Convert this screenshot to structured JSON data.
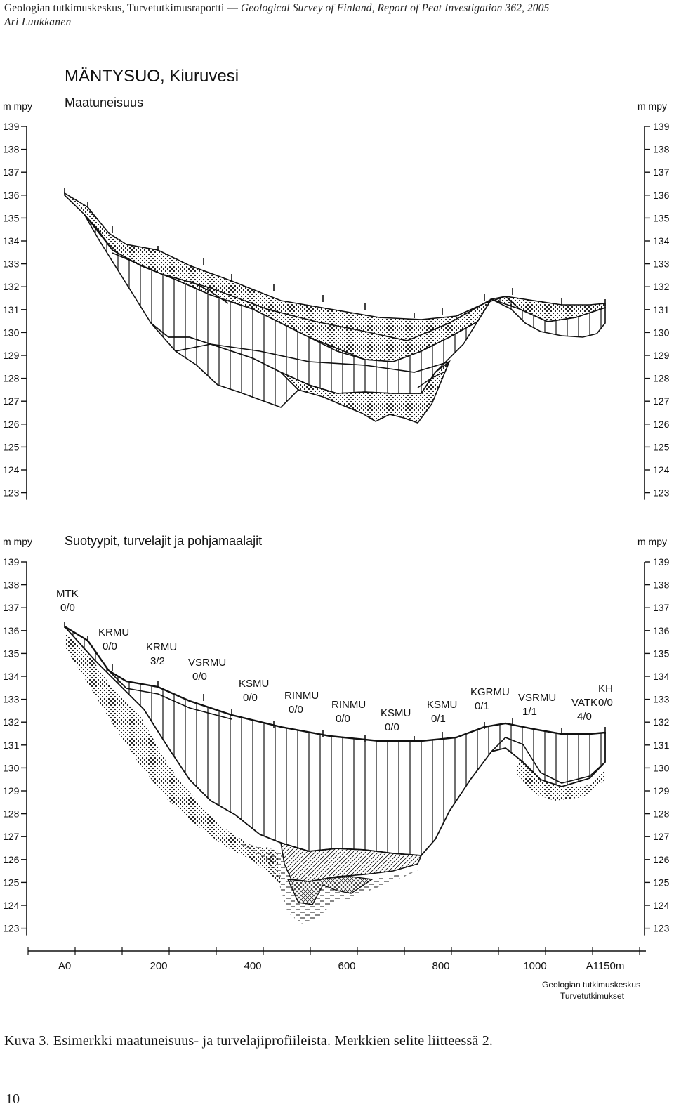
{
  "header": {
    "running_title_regular": "Geologian tutkimuskeskus, Turvetutkimusraportti —",
    "running_title_italic": "Geological Survey of Finland, Report of Peat Investigation 362, 2005",
    "author": "Ari Luukkanen"
  },
  "figure": {
    "site_title": "MÄNTYSUO, Kiuruvesi",
    "top_panel": {
      "title": "Maatuneisuus",
      "axis_unit": "m mpy",
      "levels": [
        "139",
        "138",
        "137",
        "136",
        "135",
        "134",
        "133",
        "132",
        "131",
        "130",
        "129",
        "128",
        "127",
        "126",
        "125",
        "124",
        "123"
      ]
    },
    "bottom_panel": {
      "title": "Suotyypit, turvelajit ja pohjamaalajit",
      "axis_unit": "m mpy",
      "levels": [
        "139",
        "138",
        "137",
        "136",
        "135",
        "134",
        "133",
        "132",
        "131",
        "130",
        "129",
        "128",
        "127",
        "126",
        "125",
        "124",
        "123"
      ],
      "site_labels": [
        {
          "type": "MTK",
          "code": "0/0"
        },
        {
          "type": "KRMU",
          "code": "0/0"
        },
        {
          "type": "KRMU",
          "code": "3/2"
        },
        {
          "type": "VSRMU",
          "code": "0/0"
        },
        {
          "type": "KSMU",
          "code": "0/0"
        },
        {
          "type": "RINMU",
          "code": "0/0"
        },
        {
          "type": "RINMU",
          "code": "0/0"
        },
        {
          "type": "KSMU",
          "code": "0/0"
        },
        {
          "type": "KSMU",
          "code": "0/1"
        },
        {
          "type": "KGRMU",
          "code": "0/1"
        },
        {
          "type": "VSRMU",
          "code": "1/1"
        },
        {
          "type": "VATK",
          "code": "4/0"
        },
        {
          "type": "KH",
          "code": "0/0"
        }
      ]
    },
    "distance_axis": [
      "A0",
      "200",
      "400",
      "600",
      "800",
      "1000",
      "A1150m"
    ],
    "credit_line1": "Geologian tutkimuskeskus",
    "credit_line2": "Turvetutkimukset"
  },
  "caption": "Kuva 3. Esimerkki maatuneisuus- ja turvelajiprofiileista. Merkkien selite liitteessä 2.",
  "page_number": "10"
}
